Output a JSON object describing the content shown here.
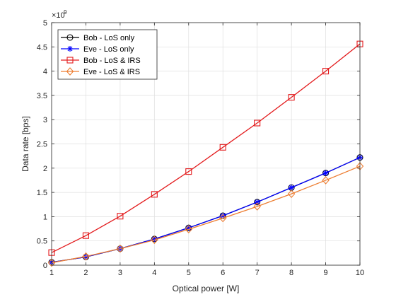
{
  "chart_data": {
    "type": "line",
    "xlabel": "Optical power [W]",
    "ylabel": "Data rate [bps]",
    "y_multiplier": {
      "base": "×10",
      "exponent": "9"
    },
    "xlim": [
      1,
      10
    ],
    "ylim": [
      0,
      5
    ],
    "xticks": [
      1,
      2,
      3,
      4,
      5,
      6,
      7,
      8,
      9,
      10
    ],
    "yticks": [
      0,
      0.5,
      1,
      1.5,
      2,
      2.5,
      3,
      3.5,
      4,
      4.5,
      5
    ],
    "ytick_labels": [
      "0",
      "0.5",
      "1",
      "1.5",
      "2",
      "2.5",
      "3",
      "3.5",
      "4",
      "4.5",
      "5"
    ],
    "grid": true,
    "legend_position": "top-left",
    "x": [
      1,
      2,
      3,
      4,
      5,
      6,
      7,
      8,
      9,
      10
    ],
    "series": [
      {
        "name": "Bob - LoS only",
        "color": "#000000",
        "marker": "circle",
        "values": [
          0.06,
          0.17,
          0.34,
          0.54,
          0.77,
          1.02,
          1.3,
          1.6,
          1.9,
          2.22
        ]
      },
      {
        "name": "Eve - LoS only",
        "color": "#0000ff",
        "marker": "asterisk",
        "values": [
          0.06,
          0.17,
          0.34,
          0.54,
          0.77,
          1.02,
          1.3,
          1.6,
          1.9,
          2.22
        ]
      },
      {
        "name": "Bob - LoS & IRS",
        "color": "#e31a1c",
        "marker": "square",
        "values": [
          0.26,
          0.61,
          1.01,
          1.46,
          1.93,
          2.43,
          2.93,
          3.46,
          4.0,
          4.56
        ]
      },
      {
        "name": "Eve - LoS & IRS",
        "color": "#ed7d31",
        "marker": "diamond",
        "values": [
          0.05,
          0.18,
          0.34,
          0.52,
          0.74,
          0.97,
          1.21,
          1.47,
          1.75,
          2.04
        ]
      }
    ]
  }
}
